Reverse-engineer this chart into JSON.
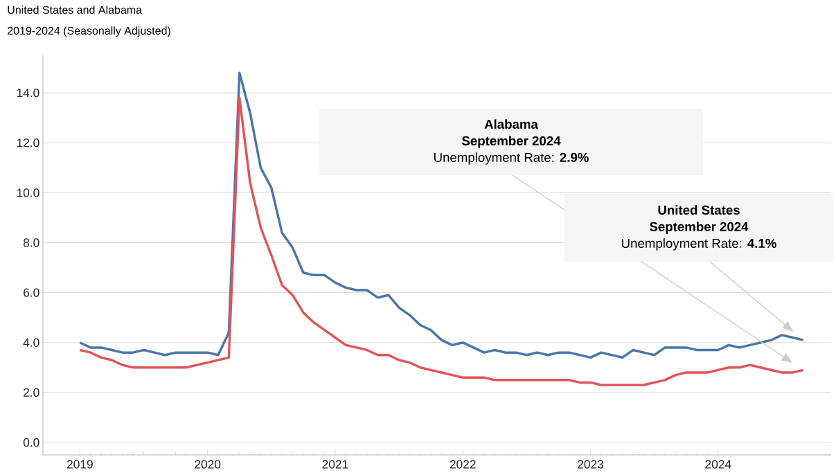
{
  "chart_data": {
    "type": "line",
    "title": "United States and Alabama",
    "subtitle": "2019-2024  (Seasonally Adjusted)",
    "x": [
      "2019-01",
      "2019-02",
      "2019-03",
      "2019-04",
      "2019-05",
      "2019-06",
      "2019-07",
      "2019-08",
      "2019-09",
      "2019-10",
      "2019-11",
      "2019-12",
      "2020-01",
      "2020-02",
      "2020-03",
      "2020-04",
      "2020-05",
      "2020-06",
      "2020-07",
      "2020-08",
      "2020-09",
      "2020-10",
      "2020-11",
      "2020-12",
      "2021-01",
      "2021-02",
      "2021-03",
      "2021-04",
      "2021-05",
      "2021-06",
      "2021-07",
      "2021-08",
      "2021-09",
      "2021-10",
      "2021-11",
      "2021-12",
      "2022-01",
      "2022-02",
      "2022-03",
      "2022-04",
      "2022-05",
      "2022-06",
      "2022-07",
      "2022-08",
      "2022-09",
      "2022-10",
      "2022-11",
      "2022-12",
      "2023-01",
      "2023-02",
      "2023-03",
      "2023-04",
      "2023-05",
      "2023-06",
      "2023-07",
      "2023-08",
      "2023-09",
      "2023-10",
      "2023-11",
      "2023-12",
      "2024-01",
      "2024-02",
      "2024-03",
      "2024-04",
      "2024-05",
      "2024-06",
      "2024-07",
      "2024-08",
      "2024-09"
    ],
    "series": [
      {
        "color": "#4a76a8",
        "values": [
          4.0,
          3.8,
          3.8,
          3.7,
          3.6,
          3.6,
          3.7,
          3.6,
          3.5,
          3.6,
          3.6,
          3.6,
          3.6,
          3.5,
          4.4,
          14.8,
          13.2,
          11.0,
          10.2,
          8.4,
          7.8,
          6.8,
          6.7,
          6.7,
          6.4,
          6.2,
          6.1,
          6.1,
          5.8,
          5.9,
          5.4,
          5.1,
          4.7,
          4.5,
          4.1,
          3.9,
          4.0,
          3.8,
          3.6,
          3.7,
          3.6,
          3.6,
          3.5,
          3.6,
          3.5,
          3.6,
          3.6,
          3.5,
          3.4,
          3.6,
          3.5,
          3.4,
          3.7,
          3.6,
          3.5,
          3.8,
          3.8,
          3.8,
          3.7,
          3.7,
          3.7,
          3.9,
          3.8,
          3.9,
          4.0,
          4.1,
          4.3,
          4.2,
          4.1
        ]
      },
      {
        "color": "#e05558",
        "values": [
          3.7,
          3.6,
          3.4,
          3.3,
          3.1,
          3.0,
          3.0,
          3.0,
          3.0,
          3.0,
          3.0,
          3.1,
          3.2,
          3.3,
          3.4,
          13.8,
          10.4,
          8.6,
          7.5,
          6.3,
          5.9,
          5.2,
          4.8,
          4.5,
          4.2,
          3.9,
          3.8,
          3.7,
          3.5,
          3.5,
          3.3,
          3.2,
          3.0,
          2.9,
          2.8,
          2.7,
          2.6,
          2.6,
          2.6,
          2.5,
          2.5,
          2.5,
          2.5,
          2.5,
          2.5,
          2.5,
          2.5,
          2.4,
          2.4,
          2.3,
          2.3,
          2.3,
          2.3,
          2.3,
          2.4,
          2.5,
          2.7,
          2.8,
          2.8,
          2.8,
          2.9,
          3.0,
          3.0,
          3.1,
          3.0,
          2.9,
          2.8,
          2.8,
          2.9
        ]
      }
    ],
    "xlim": [
      "2018-09-17",
      "2024-11-20"
    ],
    "xticks": [
      "2019",
      "2020",
      "2021",
      "2022",
      "2023",
      "2024"
    ],
    "ylim": [
      -0.5,
      15.5
    ],
    "yticks": [
      {
        "value": 0,
        "label": "0.0"
      },
      {
        "value": 2,
        "label": "2.0"
      },
      {
        "value": 4,
        "label": "4.0"
      },
      {
        "value": 6,
        "label": "6.0"
      },
      {
        "value": 8,
        "label": "8.0"
      },
      {
        "value": 10,
        "label": "10.0"
      },
      {
        "value": 12,
        "label": "12.0"
      },
      {
        "value": 14,
        "label": "14.0"
      }
    ],
    "grid": "y",
    "marker": "none",
    "line_style": "solid",
    "annotations": [
      "Alabama",
      "September 2024",
      "Unemployment Rate: **2.9%**",
      "United States",
      "September 2024",
      "Unemployment Rate: **4.1%**"
    ]
  }
}
